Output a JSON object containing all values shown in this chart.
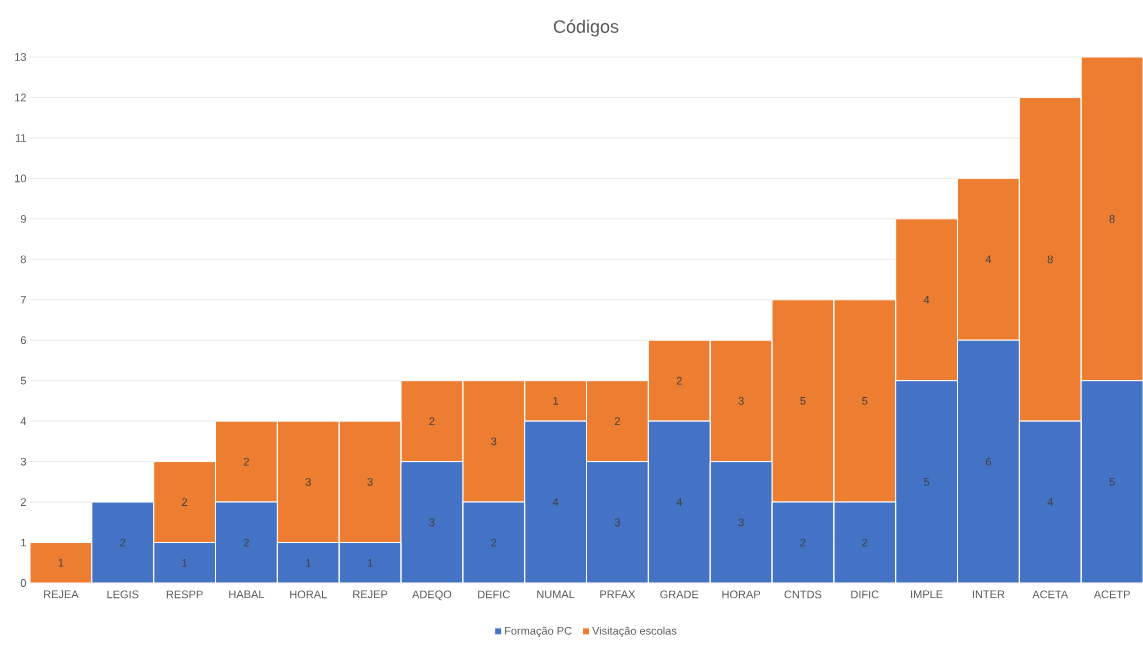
{
  "chart_data": {
    "type": "bar",
    "title": "Códigos",
    "stacked": true,
    "categories": [
      "REJEA",
      "LEGIS",
      "RESPP",
      "HABAL",
      "HORAL",
      "REJEP",
      "ADEQO",
      "DEFIC",
      "NUMAL",
      "PRFAX",
      "GRADE",
      "HORAP",
      "CNTDS",
      "DIFIC",
      "IMPLE",
      "INTER",
      "ACETA",
      "ACETP"
    ],
    "series": [
      {
        "name": "Formação PC",
        "color": "#4472c4",
        "values": [
          0,
          2,
          1,
          2,
          1,
          1,
          3,
          2,
          4,
          3,
          4,
          3,
          2,
          2,
          5,
          6,
          4,
          5
        ],
        "value_labels": [
          null,
          "2",
          "1",
          "2",
          "1",
          "1",
          "3",
          "2",
          "4",
          "3",
          "4",
          "3",
          "2",
          "2",
          "5",
          "6",
          "4",
          "5"
        ]
      },
      {
        "name": "Visitação escolas",
        "color": "#ed7d31",
        "values": [
          1,
          0,
          2,
          2,
          3,
          3,
          2,
          3,
          1,
          2,
          2,
          3,
          5,
          5,
          4,
          4,
          8,
          8
        ],
        "value_labels": [
          "1",
          null,
          "2",
          "2",
          "3",
          "3",
          "2",
          "3",
          "1",
          "2",
          "2",
          "3",
          "5",
          "5",
          "4",
          "4",
          "8",
          "8"
        ]
      }
    ],
    "ylim": [
      0,
      13
    ],
    "yticks": [
      0,
      1,
      2,
      3,
      4,
      5,
      6,
      7,
      8,
      9,
      10,
      11,
      12,
      13
    ],
    "grid": "y",
    "legend": "bottom"
  }
}
